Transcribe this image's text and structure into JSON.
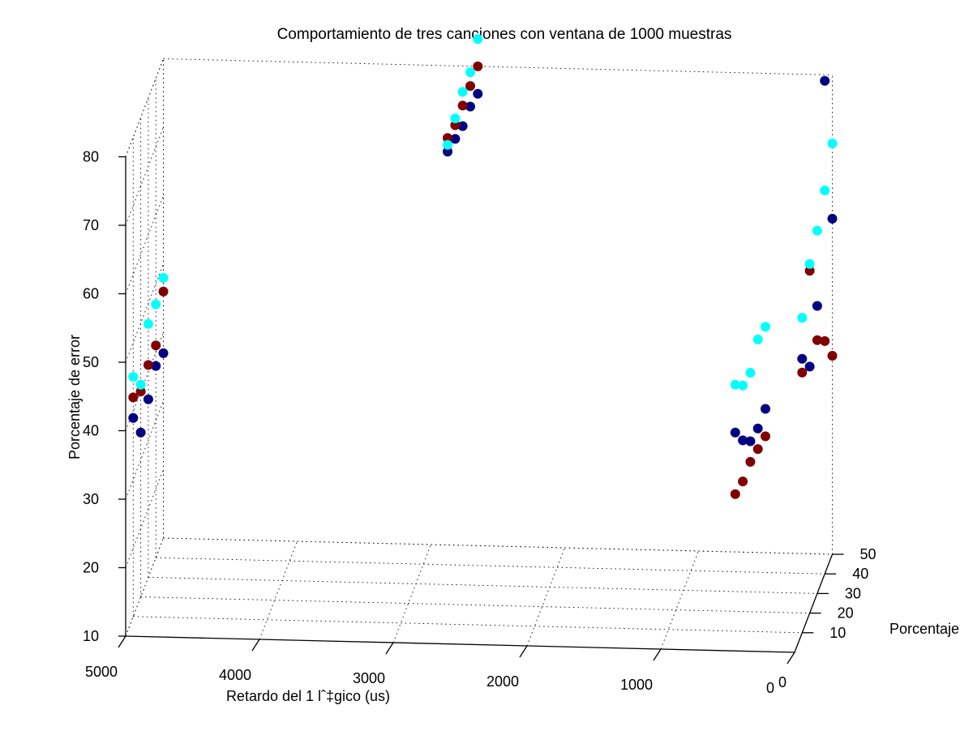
{
  "chart_data": {
    "type": "scatter",
    "title": "Comportamiento de tres canciones con ventana de 1000 muestras",
    "xlabel": "Retardo del 1 lˆ‡gico (us)",
    "ylabel": "Porcentaje",
    "zlabel": "Porcentaje de error",
    "xlim": [
      0,
      5000
    ],
    "ylim": [
      0,
      50
    ],
    "zlim": [
      10,
      80
    ],
    "x_ticks": [
      "5000",
      "4000",
      "3000",
      "2000",
      "1000",
      "0"
    ],
    "y_ticks": [
      "10",
      "20",
      "30",
      "40",
      "50"
    ],
    "z_ticks": [
      "10",
      "20",
      "30",
      "40",
      "50",
      "60",
      "70",
      "80"
    ],
    "grid": true,
    "series": [
      {
        "color": "#000080",
        "points": [
          {
            "x": 5000,
            "y": 10,
            "z": 39
          },
          {
            "x": 5000,
            "y": 20,
            "z": 34
          },
          {
            "x": 5000,
            "y": 30,
            "z": 36
          },
          {
            "x": 5000,
            "y": 40,
            "z": 38
          },
          {
            "x": 5000,
            "y": 50,
            "z": 37
          },
          {
            "x": 2650,
            "y": 10,
            "z": 79
          },
          {
            "x": 2650,
            "y": 20,
            "z": 78
          },
          {
            "x": 2650,
            "y": 30,
            "z": 77
          },
          {
            "x": 2650,
            "y": 40,
            "z": 77
          },
          {
            "x": 2650,
            "y": 50,
            "z": 76
          },
          {
            "x": 500,
            "y": 10,
            "z": 39
          },
          {
            "x": 500,
            "y": 20,
            "z": 35
          },
          {
            "x": 500,
            "y": 30,
            "z": 32
          },
          {
            "x": 500,
            "y": 40,
            "z": 31
          },
          {
            "x": 500,
            "y": 50,
            "z": 31
          },
          {
            "x": 0,
            "y": 10,
            "z": 50
          },
          {
            "x": 0,
            "y": 20,
            "z": 46
          },
          {
            "x": 0,
            "y": 30,
            "z": 52
          },
          {
            "x": 0,
            "y": 40,
            "z": 82
          },
          {
            "x": 0,
            "y": 50,
            "z": 59
          }
        ]
      },
      {
        "color": "#800000",
        "points": [
          {
            "x": 5000,
            "y": 10,
            "z": 42
          },
          {
            "x": 5000,
            "y": 20,
            "z": 40
          },
          {
            "x": 5000,
            "y": 30,
            "z": 41
          },
          {
            "x": 5000,
            "y": 40,
            "z": 41
          },
          {
            "x": 5000,
            "y": 50,
            "z": 46
          },
          {
            "x": 2650,
            "y": 10,
            "z": 81
          },
          {
            "x": 2650,
            "y": 20,
            "z": 80
          },
          {
            "x": 2650,
            "y": 30,
            "z": 80
          },
          {
            "x": 2650,
            "y": 40,
            "z": 80
          },
          {
            "x": 2650,
            "y": 50,
            "z": 80
          },
          {
            "x": 500,
            "y": 10,
            "z": 30
          },
          {
            "x": 500,
            "y": 20,
            "z": 29
          },
          {
            "x": 500,
            "y": 30,
            "z": 29
          },
          {
            "x": 500,
            "y": 40,
            "z": 28
          },
          {
            "x": 500,
            "y": 50,
            "z": 27
          },
          {
            "x": 0,
            "y": 10,
            "z": 48
          },
          {
            "x": 0,
            "y": 20,
            "z": 60
          },
          {
            "x": 0,
            "y": 30,
            "z": 47
          },
          {
            "x": 0,
            "y": 40,
            "z": 44
          },
          {
            "x": 0,
            "y": 50,
            "z": 39
          }
        ]
      },
      {
        "color": "#00ffff",
        "points": [
          {
            "x": 5000,
            "y": 10,
            "z": 45
          },
          {
            "x": 5000,
            "y": 20,
            "z": 41
          },
          {
            "x": 5000,
            "y": 30,
            "z": 47
          },
          {
            "x": 5000,
            "y": 40,
            "z": 47
          },
          {
            "x": 5000,
            "y": 50,
            "z": 48
          },
          {
            "x": 2650,
            "y": 10,
            "z": 80
          },
          {
            "x": 2650,
            "y": 20,
            "z": 81
          },
          {
            "x": 2650,
            "y": 30,
            "z": 82
          },
          {
            "x": 2650,
            "y": 40,
            "z": 82
          },
          {
            "x": 2650,
            "y": 50,
            "z": 84
          },
          {
            "x": 500,
            "y": 10,
            "z": 46
          },
          {
            "x": 500,
            "y": 20,
            "z": 43
          },
          {
            "x": 500,
            "y": 30,
            "z": 42
          },
          {
            "x": 500,
            "y": 40,
            "z": 44
          },
          {
            "x": 500,
            "y": 50,
            "z": 43
          },
          {
            "x": 0,
            "y": 10,
            "z": 56
          },
          {
            "x": 0,
            "y": 20,
            "z": 61
          },
          {
            "x": 0,
            "y": 30,
            "z": 63
          },
          {
            "x": 0,
            "y": 40,
            "z": 66
          },
          {
            "x": 0,
            "y": 50,
            "z": 70
          }
        ]
      }
    ]
  }
}
